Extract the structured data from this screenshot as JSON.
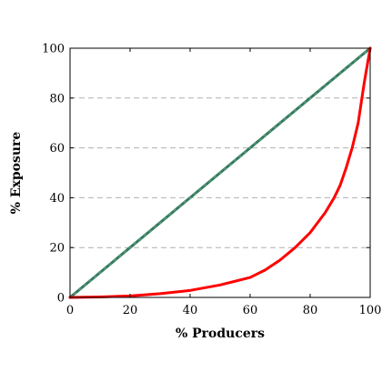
{
  "chart_data": {
    "type": "line",
    "title": "",
    "xlabel": "% Producers",
    "ylabel": "% Exposure",
    "xlim": [
      0,
      100
    ],
    "ylim": [
      0,
      100
    ],
    "x_ticks": [
      0,
      20,
      40,
      60,
      80,
      100
    ],
    "y_ticks": [
      0,
      20,
      40,
      60,
      80,
      100
    ],
    "grid": "horizontal-dashed",
    "legend": "none",
    "series": [
      {
        "color": "#2e7d5b",
        "style": "solid-thick-with-markers",
        "x": [
          0,
          10,
          20,
          30,
          40,
          50,
          60,
          70,
          80,
          90,
          100
        ],
        "y": [
          0,
          10,
          20,
          30,
          40,
          50,
          60,
          70,
          80,
          90,
          100
        ]
      },
      {
        "color": "#ff0000",
        "style": "solid-thick",
        "x": [
          0,
          10,
          20,
          30,
          40,
          50,
          60,
          65,
          70,
          75,
          80,
          85,
          88,
          90,
          92,
          94,
          96,
          97,
          98,
          99,
          100
        ],
        "y": [
          0,
          0.2,
          0.6,
          1.5,
          2.8,
          5,
          8,
          11,
          15,
          20,
          26,
          34,
          40,
          45,
          52,
          60,
          70,
          78,
          86,
          93,
          100
        ]
      }
    ]
  }
}
